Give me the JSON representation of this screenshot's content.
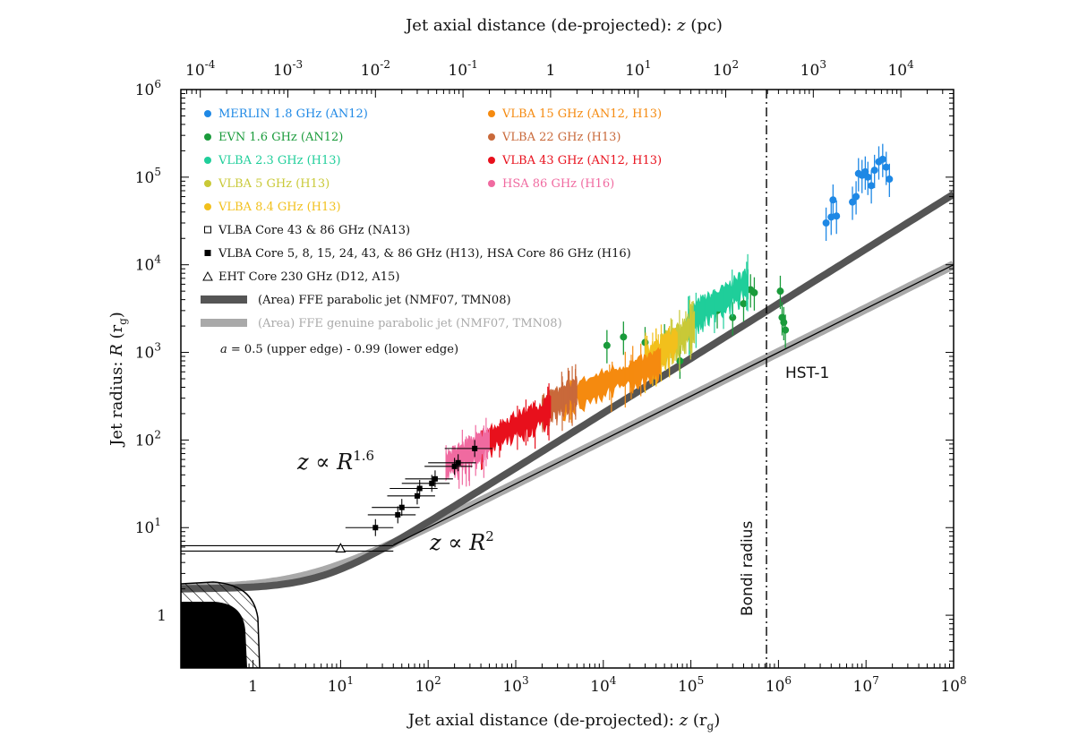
{
  "chart_data": {
    "type": "scatter",
    "xscale": "log",
    "yscale": "log",
    "xlim": [
      0.15,
      100000000
    ],
    "ylim": [
      0.25,
      1000000
    ],
    "xlabel_parts": [
      "Jet axial distance (de-projected): ",
      "z",
      " (r",
      "g",
      ")"
    ],
    "ylabel_parts": [
      "Jet radius: ",
      "R",
      " (r",
      "g",
      ")"
    ],
    "top_xlabel_parts": [
      "Jet axial distance (de-projected): ",
      "z",
      " (pc)"
    ],
    "x_ticks": [
      {
        "value": 1,
        "base": "1",
        "exp": ""
      },
      {
        "value": 10,
        "base": "10",
        "exp": "1"
      },
      {
        "value": 100,
        "base": "10",
        "exp": "2"
      },
      {
        "value": 1000,
        "base": "10",
        "exp": "3"
      },
      {
        "value": 10000,
        "base": "10",
        "exp": "4"
      },
      {
        "value": 100000,
        "base": "10",
        "exp": "5"
      },
      {
        "value": 1000000,
        "base": "10",
        "exp": "6"
      },
      {
        "value": 10000000,
        "base": "10",
        "exp": "7"
      },
      {
        "value": 100000000,
        "base": "10",
        "exp": "8"
      }
    ],
    "y_ticks": [
      {
        "value": 1,
        "base": "1",
        "exp": ""
      },
      {
        "value": 10,
        "base": "10",
        "exp": "1"
      },
      {
        "value": 100,
        "base": "10",
        "exp": "2"
      },
      {
        "value": 1000,
        "base": "10",
        "exp": "3"
      },
      {
        "value": 10000,
        "base": "10",
        "exp": "4"
      },
      {
        "value": 100000,
        "base": "10",
        "exp": "5"
      },
      {
        "value": 1000000,
        "base": "10",
        "exp": "6"
      }
    ],
    "top_ticks_pc": [
      {
        "value_rg": 0.25,
        "base": "10",
        "exp": "-4"
      },
      {
        "value_rg": 2.5,
        "base": "10",
        "exp": "-3"
      },
      {
        "value_rg": 25,
        "base": "10",
        "exp": "-2"
      },
      {
        "value_rg": 250,
        "base": "10",
        "exp": "-1"
      },
      {
        "value_rg": 2500,
        "base": "1",
        "exp": ""
      },
      {
        "value_rg": 25000,
        "base": "10",
        "exp": "1"
      },
      {
        "value_rg": 250000,
        "base": "10",
        "exp": "2"
      },
      {
        "value_rg": 2500000,
        "base": "10",
        "exp": "3"
      },
      {
        "value_rg": 25000000,
        "base": "10",
        "exp": "4"
      }
    ],
    "legend": [
      {
        "label": "MERLIN 1.8 GHz (AN12)",
        "color": "#1e88e5",
        "marker": "dot"
      },
      {
        "label": "EVN 1.6 GHz (AN12)",
        "color": "#1a9b3b",
        "marker": "dot"
      },
      {
        "label": "VLBA 2.3 GHz (H13)",
        "color": "#1fce9a",
        "marker": "dot"
      },
      {
        "label": "VLBA 5 GHz (H13)",
        "color": "#c9c937",
        "marker": "dot"
      },
      {
        "label": "VLBA 8.4 GHz (H13)",
        "color": "#f2c01c",
        "marker": "dot"
      },
      {
        "label": "VLBA 15 GHz (AN12, H13)",
        "color": "#f58a0f",
        "marker": "dot"
      },
      {
        "label": "VLBA 22 GHz (H13)",
        "color": "#c9693a",
        "marker": "dot"
      },
      {
        "label": "VLBA 43 GHz (AN12, H13)",
        "color": "#e8101c",
        "marker": "dot"
      },
      {
        "label": "HSA 86 GHz (H16)",
        "color": "#f06aa0",
        "marker": "dot"
      },
      {
        "label": "VLBA Core 43 & 86 GHz (NA13)",
        "color": "#111111",
        "marker": "open-square"
      },
      {
        "label": "VLBA Core 5, 8, 15, 24, 43, & 86 GHz (H13), HSA Core 86 GHz (H16)",
        "color": "#111111",
        "marker": "filled-square"
      },
      {
        "label": "EHT Core 230 GHz (D12, A15)",
        "color": "#111111",
        "marker": "open-triangle"
      },
      {
        "label": "(Area) FFE parabolic jet (NMF07, TMN08)",
        "color": "#555555",
        "marker": "band"
      },
      {
        "label": "(Area) FFE genuine parabolic jet (NMF07, TMN08)",
        "color": "#a9a9a9",
        "marker": "band"
      }
    ],
    "legend_note_parts": [
      "a",
      " = 0.5 (upper edge) - 0.99 (lower edge)"
    ],
    "annotations": {
      "r16_parts": [
        "z",
        " ∝ ",
        "R",
        "1.6"
      ],
      "r2_parts": [
        "z",
        " ∝ ",
        "R",
        "2"
      ],
      "bondi": "Bondi radius",
      "hst": "HST-1"
    },
    "bondi_x": 730000,
    "ffe_parabolic": {
      "color": "#555555",
      "exponent": 0.625,
      "k": 0.64
    },
    "ffe_genuine": {
      "color": "#a9a9a9",
      "exponent": 0.5,
      "k": 1.0
    },
    "conical_line": {
      "color": "#000000",
      "exponent": 0.5,
      "k": 1.0,
      "x_range": [
        40,
        100000000
      ]
    },
    "series": [
      {
        "name": "MERLIN 1.8 GHz (AN12)",
        "color": "#1e88e5",
        "kind": "points",
        "points": [
          [
            3500000,
            30000
          ],
          [
            4000000,
            35000
          ],
          [
            4200000,
            55000
          ],
          [
            4600000,
            36000
          ],
          [
            7000000,
            52000
          ],
          [
            7700000,
            60000
          ],
          [
            8200000,
            110000
          ],
          [
            9000000,
            105000
          ],
          [
            9800000,
            115000
          ],
          [
            10500000,
            100000
          ],
          [
            11500000,
            80000
          ],
          [
            12500000,
            120000
          ],
          [
            14000000,
            150000
          ],
          [
            15500000,
            160000
          ],
          [
            17000000,
            130000
          ],
          [
            18500000,
            95000
          ]
        ]
      },
      {
        "name": "EVN 1.6 GHz (AN12)",
        "color": "#1a9b3b",
        "kind": "points",
        "points": [
          [
            11000,
            1200
          ],
          [
            17000,
            1500
          ],
          [
            30000,
            1300
          ],
          [
            50000,
            1400
          ],
          [
            75000,
            800
          ],
          [
            200000,
            3000
          ],
          [
            300000,
            2500
          ],
          [
            400000,
            3600
          ],
          [
            480000,
            5200
          ],
          [
            530000,
            4800
          ],
          [
            1050000,
            5000
          ],
          [
            1100000,
            2500
          ],
          [
            1150000,
            2200
          ],
          [
            1200000,
            1800
          ]
        ]
      },
      {
        "name": "VLBA 2.3 GHz (H13)",
        "color": "#1fce9a",
        "kind": "band",
        "x": [
          90000,
          130000,
          180000,
          250000,
          350000,
          450000
        ],
        "y": [
          2100,
          3000,
          3500,
          4200,
          5500,
          6500
        ]
      },
      {
        "name": "VLBA 5 GHz (H13)",
        "color": "#c9c937",
        "kind": "band",
        "x": [
          45000,
          60000,
          75000,
          90000,
          110000
        ],
        "y": [
          1100,
          1300,
          1500,
          1800,
          2100
        ]
      },
      {
        "name": "VLBA 8.4 GHz (H13)",
        "color": "#f2c01c",
        "kind": "band",
        "x": [
          30000,
          40000,
          50000,
          60000,
          70000
        ],
        "y": [
          800,
          950,
          1100,
          1250,
          1400
        ]
      },
      {
        "name": "VLBA 15 GHz (AN12, H13)",
        "color": "#f58a0f",
        "kind": "band",
        "x": [
          3500,
          5000,
          8000,
          12000,
          18000,
          25000,
          35000,
          45000
        ],
        "y": [
          280,
          340,
          400,
          480,
          540,
          600,
          700,
          800
        ]
      },
      {
        "name": "VLBA 22 GHz (H13)",
        "color": "#c9693a",
        "kind": "band",
        "x": [
          2000,
          2500,
          3200,
          4000,
          5000
        ],
        "y": [
          220,
          250,
          290,
          330,
          370
        ]
      },
      {
        "name": "VLBA 43 GHz (AN12, H13)",
        "color": "#e8101c",
        "kind": "band",
        "x": [
          400,
          600,
          800,
          1100,
          1500,
          2000,
          2500
        ],
        "y": [
          95,
          110,
          130,
          150,
          175,
          200,
          230
        ]
      },
      {
        "name": "HSA 86 GHz (H16)",
        "color": "#f06aa0",
        "kind": "band",
        "x": [
          160,
          220,
          300,
          400,
          500
        ],
        "y": [
          52,
          62,
          74,
          88,
          100
        ]
      },
      {
        "name": "VLBA Core 5, 8, 15, 24, 43, & 86 GHz (H13), HSA Core 86 GHz (H16)",
        "color": "#111111",
        "kind": "cores",
        "points": [
          [
            25,
            10
          ],
          [
            45,
            14
          ],
          [
            50,
            17
          ],
          [
            75,
            23
          ],
          [
            80,
            28
          ],
          [
            110,
            32
          ],
          [
            120,
            36
          ],
          [
            200,
            50
          ],
          [
            220,
            55
          ],
          [
            340,
            80
          ]
        ]
      },
      {
        "name": "EHT Core 230 GHz (D12, A15)",
        "color": "#111111",
        "kind": "triangle",
        "points": [
          [
            10,
            5.8
          ]
        ]
      }
    ]
  }
}
